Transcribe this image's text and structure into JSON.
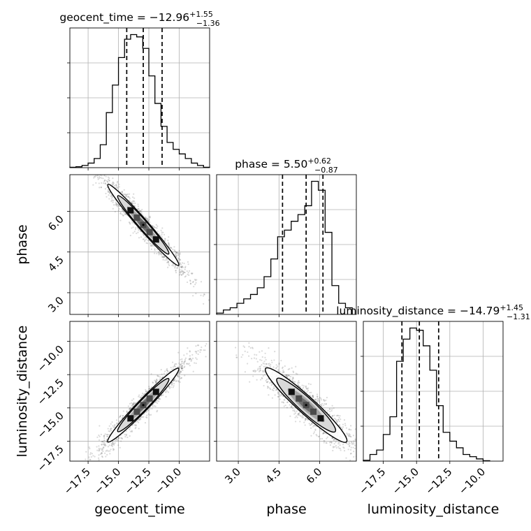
{
  "chart_data": {
    "type": "corner",
    "parameters": [
      "geocent_time",
      "phase",
      "luminosity_distance"
    ],
    "titles": [
      {
        "param": "geocent_time",
        "median": "−12.96",
        "plus": "+1.55",
        "minus": "−1.36"
      },
      {
        "param": "phase",
        "median": "5.50",
        "plus": "+0.62",
        "minus": "−0.87"
      },
      {
        "param": "luminosity_distance",
        "median": "−14.79",
        "plus": "+1.45",
        "minus": "−1.31"
      }
    ],
    "ranges": {
      "geocent_time": [
        -19.0,
        -7.5
      ],
      "phase": [
        2.2,
        7.35
      ],
      "luminosity_distance": [
        -19.0,
        -8.5
      ]
    },
    "ticks": {
      "geocent_time": [
        {
          "v": -17.5,
          "label": "−17.5"
        },
        {
          "v": -15.0,
          "label": "−15.0"
        },
        {
          "v": -12.5,
          "label": "−12.5"
        },
        {
          "v": -10.0,
          "label": "−10.0"
        }
      ],
      "phase": [
        {
          "v": 3.0,
          "label": "3.0"
        },
        {
          "v": 4.5,
          "label": "4.5"
        },
        {
          "v": 6.0,
          "label": "6.0"
        }
      ],
      "luminosity_distance": [
        {
          "v": -17.5,
          "label": "−17.5"
        },
        {
          "v": -15.0,
          "label": "−15.0"
        },
        {
          "v": -12.5,
          "label": "−12.5"
        },
        {
          "v": -10.0,
          "label": "−10.0"
        }
      ]
    },
    "quantiles": {
      "geocent_time": [
        -14.32,
        -12.96,
        -11.41
      ],
      "phase": [
        4.63,
        5.5,
        6.12
      ],
      "luminosity_distance": [
        -16.1,
        -14.79,
        -13.34
      ]
    },
    "histograms": {
      "geocent_time": {
        "edges": [
          -19.0,
          -18.5,
          -18.0,
          -17.5,
          -17.0,
          -16.5,
          -16.0,
          -15.5,
          -15.0,
          -14.5,
          -14.0,
          -13.5,
          -13.0,
          -12.5,
          -12.0,
          -11.5,
          -11.0,
          -10.5,
          -10.0,
          -9.5,
          -9.0,
          -8.5,
          -8.0,
          -7.5
        ],
        "counts": [
          1,
          2,
          5,
          10,
          20,
          50,
          120,
          180,
          240,
          280,
          290,
          285,
          260,
          200,
          140,
          90,
          55,
          40,
          30,
          20,
          10,
          5,
          1
        ]
      },
      "phase": {
        "edges": [
          2.2,
          2.45,
          2.7,
          2.95,
          3.2,
          3.45,
          3.7,
          3.95,
          4.2,
          4.45,
          4.7,
          4.95,
          5.2,
          5.45,
          5.7,
          5.95,
          6.2,
          6.45,
          6.7,
          6.95,
          7.2
        ],
        "counts": [
          3,
          10,
          15,
          25,
          35,
          45,
          60,
          85,
          125,
          175,
          190,
          210,
          225,
          245,
          300,
          280,
          185,
          65,
          25,
          15
        ]
      },
      "luminosity_distance": {
        "edges": [
          -19.0,
          -18.5,
          -18.0,
          -17.5,
          -17.0,
          -16.5,
          -16.0,
          -15.5,
          -15.0,
          -14.5,
          -14.0,
          -13.5,
          -13.0,
          -12.5,
          -12.0,
          -11.5,
          -11.0,
          -10.5,
          -10.0,
          -9.5
        ],
        "counts": [
          2,
          15,
          25,
          60,
          100,
          225,
          275,
          300,
          295,
          260,
          205,
          125,
          65,
          45,
          30,
          15,
          10,
          5,
          1
        ]
      }
    },
    "pairs": [
      {
        "x": "geocent_time",
        "y": "phase",
        "correlation": -0.97
      },
      {
        "x": "geocent_time",
        "y": "luminosity_distance",
        "correlation": 0.96
      },
      {
        "x": "phase",
        "y": "luminosity_distance",
        "correlation": -0.92
      }
    ],
    "grid": true,
    "series_color": "#000000",
    "grid_color": "#b0b0b0"
  }
}
